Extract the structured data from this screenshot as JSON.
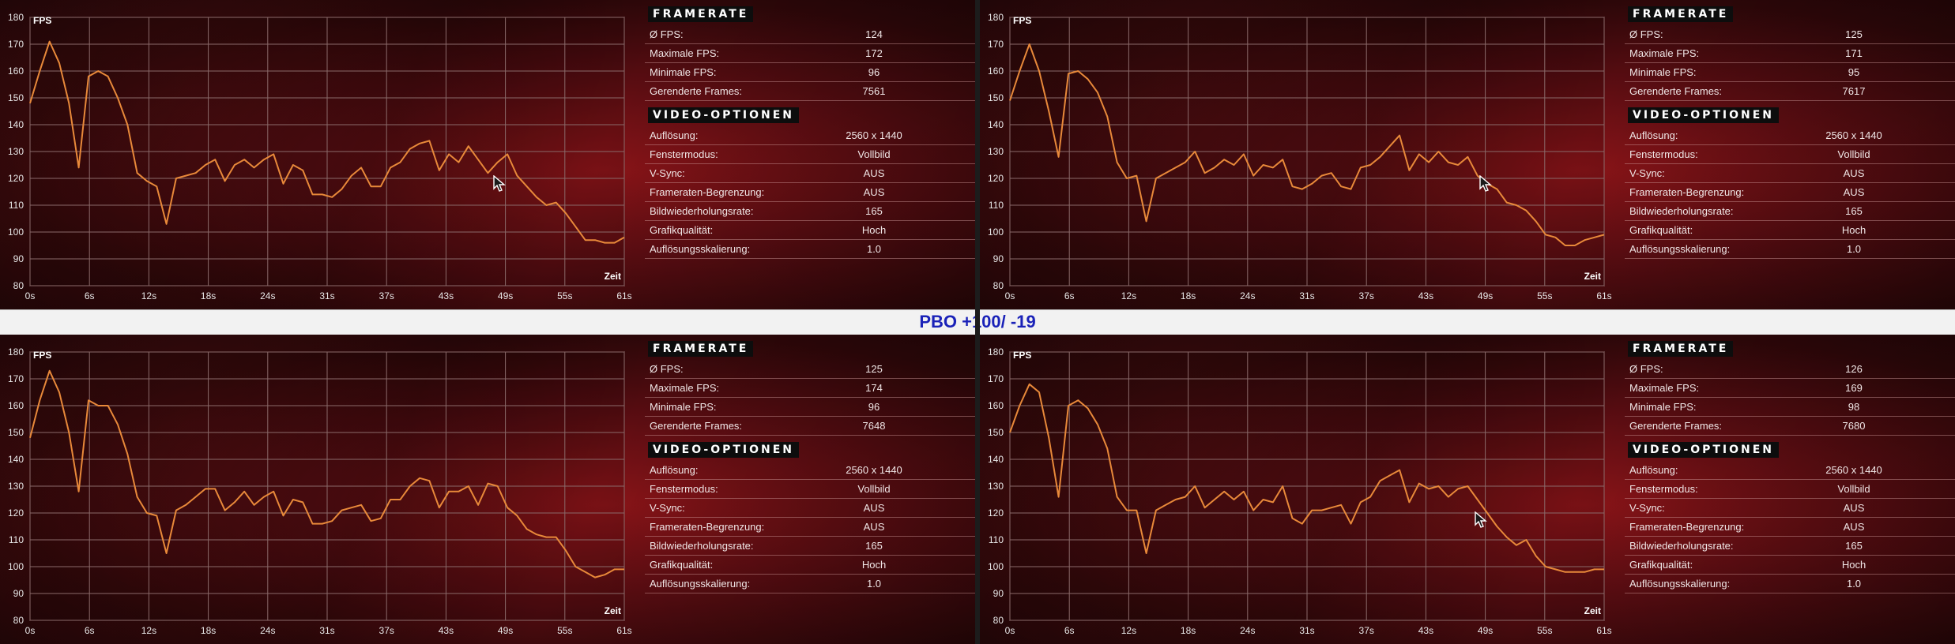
{
  "title": "PBO +100/ -19",
  "chart_axis": {
    "y_label": "FPS",
    "x_label": "Zeit",
    "y_ticks": [
      "180",
      "170",
      "160",
      "150",
      "140",
      "130",
      "120",
      "110",
      "100",
      "90",
      "80"
    ],
    "x_ticks": [
      "0s",
      "6s",
      "12s",
      "18s",
      "24s",
      "31s",
      "37s",
      "43s",
      "49s",
      "55s",
      "61s"
    ]
  },
  "section_titles": {
    "framerate": "FRAMERATE",
    "video": "VIDEO-OPTIONEN"
  },
  "panels": [
    {
      "stats": [
        {
          "label": "Ø FPS:",
          "value": "124"
        },
        {
          "label": "Maximale FPS:",
          "value": "172"
        },
        {
          "label": "Minimale FPS:",
          "value": "96"
        },
        {
          "label": "Gerenderte Frames:",
          "value": "7561"
        }
      ],
      "options": [
        {
          "label": "Auflösung:",
          "value": "2560 x 1440"
        },
        {
          "label": "Fenstermodus:",
          "value": "Vollbild"
        },
        {
          "label": "V-Sync:",
          "value": "AUS"
        },
        {
          "label": "Frameraten-Begrenzung:",
          "value": "AUS"
        },
        {
          "label": "Bildwiederholungsrate:",
          "value": "165"
        },
        {
          "label": "Grafikqualität:",
          "value": "Hoch"
        },
        {
          "label": "Auflösungsskalierung:",
          "value": "1.0"
        }
      ]
    },
    {
      "stats": [
        {
          "label": "Ø FPS:",
          "value": "125"
        },
        {
          "label": "Maximale FPS:",
          "value": "171"
        },
        {
          "label": "Minimale FPS:",
          "value": "95"
        },
        {
          "label": "Gerenderte Frames:",
          "value": "7617"
        }
      ],
      "options": [
        {
          "label": "Auflösung:",
          "value": "2560 x 1440"
        },
        {
          "label": "Fenstermodus:",
          "value": "Vollbild"
        },
        {
          "label": "V-Sync:",
          "value": "AUS"
        },
        {
          "label": "Frameraten-Begrenzung:",
          "value": "AUS"
        },
        {
          "label": "Bildwiederholungsrate:",
          "value": "165"
        },
        {
          "label": "Grafikqualität:",
          "value": "Hoch"
        },
        {
          "label": "Auflösungsskalierung:",
          "value": "1.0"
        }
      ]
    },
    {
      "stats": [
        {
          "label": "Ø FPS:",
          "value": "125"
        },
        {
          "label": "Maximale FPS:",
          "value": "174"
        },
        {
          "label": "Minimale FPS:",
          "value": "96"
        },
        {
          "label": "Gerenderte Frames:",
          "value": "7648"
        }
      ],
      "options": [
        {
          "label": "Auflösung:",
          "value": "2560 x 1440"
        },
        {
          "label": "Fenstermodus:",
          "value": "Vollbild"
        },
        {
          "label": "V-Sync:",
          "value": "AUS"
        },
        {
          "label": "Frameraten-Begrenzung:",
          "value": "AUS"
        },
        {
          "label": "Bildwiederholungsrate:",
          "value": "165"
        },
        {
          "label": "Grafikqualität:",
          "value": "Hoch"
        },
        {
          "label": "Auflösungsskalierung:",
          "value": "1.0"
        }
      ]
    },
    {
      "stats": [
        {
          "label": "Ø FPS:",
          "value": "126"
        },
        {
          "label": "Maximale FPS:",
          "value": "169"
        },
        {
          "label": "Minimale FPS:",
          "value": "98"
        },
        {
          "label": "Gerenderte Frames:",
          "value": "7680"
        }
      ],
      "options": [
        {
          "label": "Auflösung:",
          "value": "2560 x 1440"
        },
        {
          "label": "Fenstermodus:",
          "value": "Vollbild"
        },
        {
          "label": "V-Sync:",
          "value": "AUS"
        },
        {
          "label": "Frameraten-Begrenzung:",
          "value": "AUS"
        },
        {
          "label": "Bildwiederholungsrate:",
          "value": "165"
        },
        {
          "label": "Grafikqualität:",
          "value": "Hoch"
        },
        {
          "label": "Auflösungsskalierung:",
          "value": "1.0"
        }
      ]
    }
  ],
  "colors": {
    "line": "#e8893a",
    "grid": "#8a6a6a",
    "band_title": "#1a22b8"
  },
  "icons": {
    "cursor": "mouse-pointer-icon"
  },
  "chart_data": [
    {
      "type": "line",
      "xlabel": "Zeit",
      "ylabel": "FPS",
      "xlim": [
        0,
        61
      ],
      "ylim": [
        80,
        180
      ],
      "grid": true,
      "x": [
        0,
        1,
        2,
        3,
        4,
        5,
        6,
        7,
        8,
        9,
        10,
        11,
        12,
        13,
        14,
        15,
        16,
        17,
        18,
        19,
        20,
        21,
        22,
        23,
        24,
        25,
        26,
        27,
        28,
        29,
        30,
        31,
        32,
        33,
        34,
        35,
        36,
        37,
        38,
        39,
        40,
        41,
        42,
        43,
        44,
        45,
        46,
        47,
        48,
        49,
        50,
        51,
        52,
        53,
        54,
        55,
        56,
        57,
        58,
        59,
        60,
        61
      ],
      "series": [
        {
          "values": [
            148,
            160,
            171,
            163,
            148,
            124,
            158,
            160,
            158,
            150,
            140,
            122,
            119,
            117,
            103,
            120,
            121,
            122,
            125,
            127,
            119,
            125,
            127,
            124,
            127,
            129,
            118,
            125,
            123,
            114,
            114,
            113,
            116,
            121,
            124,
            117,
            117,
            124,
            126,
            131,
            133,
            134,
            123,
            129,
            126,
            132,
            127,
            122,
            126,
            129,
            121,
            117,
            113,
            110,
            111,
            107,
            102,
            97,
            97,
            96,
            96,
            98
          ]
        }
      ]
    },
    {
      "type": "line",
      "xlabel": "Zeit",
      "ylabel": "FPS",
      "xlim": [
        0,
        61
      ],
      "ylim": [
        80,
        180
      ],
      "grid": true,
      "x": [
        0,
        1,
        2,
        3,
        4,
        5,
        6,
        7,
        8,
        9,
        10,
        11,
        12,
        13,
        14,
        15,
        16,
        17,
        18,
        19,
        20,
        21,
        22,
        23,
        24,
        25,
        26,
        27,
        28,
        29,
        30,
        31,
        32,
        33,
        34,
        35,
        36,
        37,
        38,
        39,
        40,
        41,
        42,
        43,
        44,
        45,
        46,
        47,
        48,
        49,
        50,
        51,
        52,
        53,
        54,
        55,
        56,
        57,
        58,
        59,
        60,
        61
      ],
      "series": [
        {
          "values": [
            149,
            160,
            170,
            160,
            145,
            128,
            159,
            160,
            157,
            152,
            143,
            126,
            120,
            121,
            104,
            120,
            122,
            124,
            126,
            130,
            122,
            124,
            127,
            125,
            129,
            121,
            125,
            124,
            127,
            117,
            116,
            118,
            121,
            122,
            117,
            116,
            124,
            125,
            128,
            132,
            136,
            123,
            129,
            126,
            130,
            126,
            125,
            128,
            121,
            118,
            116,
            111,
            110,
            108,
            104,
            99,
            98,
            95,
            95,
            97,
            98,
            99
          ]
        }
      ]
    },
    {
      "type": "line",
      "xlabel": "Zeit",
      "ylabel": "FPS",
      "xlim": [
        0,
        61
      ],
      "ylim": [
        80,
        180
      ],
      "grid": true,
      "x": [
        0,
        1,
        2,
        3,
        4,
        5,
        6,
        7,
        8,
        9,
        10,
        11,
        12,
        13,
        14,
        15,
        16,
        17,
        18,
        19,
        20,
        21,
        22,
        23,
        24,
        25,
        26,
        27,
        28,
        29,
        30,
        31,
        32,
        33,
        34,
        35,
        36,
        37,
        38,
        39,
        40,
        41,
        42,
        43,
        44,
        45,
        46,
        47,
        48,
        49,
        50,
        51,
        52,
        53,
        54,
        55,
        56,
        57,
        58,
        59,
        60,
        61
      ],
      "series": [
        {
          "values": [
            148,
            162,
            173,
            165,
            150,
            128,
            162,
            160,
            160,
            153,
            142,
            126,
            120,
            119,
            105,
            121,
            123,
            126,
            129,
            129,
            121,
            124,
            128,
            123,
            126,
            128,
            119,
            125,
            124,
            116,
            116,
            117,
            121,
            122,
            123,
            117,
            118,
            125,
            125,
            130,
            133,
            132,
            122,
            128,
            128,
            130,
            123,
            131,
            130,
            122,
            119,
            114,
            112,
            111,
            111,
            106,
            100,
            98,
            96,
            97,
            99,
            99
          ]
        }
      ]
    },
    {
      "type": "line",
      "xlabel": "Zeit",
      "ylabel": "FPS",
      "xlim": [
        0,
        61
      ],
      "ylim": [
        80,
        180
      ],
      "grid": true,
      "x": [
        0,
        1,
        2,
        3,
        4,
        5,
        6,
        7,
        8,
        9,
        10,
        11,
        12,
        13,
        14,
        15,
        16,
        17,
        18,
        19,
        20,
        21,
        22,
        23,
        24,
        25,
        26,
        27,
        28,
        29,
        30,
        31,
        32,
        33,
        34,
        35,
        36,
        37,
        38,
        39,
        40,
        41,
        42,
        43,
        44,
        45,
        46,
        47,
        48,
        49,
        50,
        51,
        52,
        53,
        54,
        55,
        56,
        57,
        58,
        59,
        60,
        61
      ],
      "series": [
        {
          "values": [
            150,
            160,
            168,
            165,
            148,
            126,
            160,
            162,
            159,
            153,
            144,
            126,
            121,
            121,
            105,
            121,
            123,
            125,
            126,
            130,
            122,
            125,
            128,
            125,
            128,
            121,
            125,
            124,
            130,
            118,
            116,
            121,
            121,
            122,
            123,
            116,
            124,
            126,
            132,
            134,
            136,
            124,
            131,
            129,
            130,
            126,
            129,
            130,
            125,
            120,
            115,
            111,
            108,
            110,
            104,
            100,
            99,
            98,
            98,
            98,
            99,
            99
          ]
        }
      ]
    }
  ]
}
